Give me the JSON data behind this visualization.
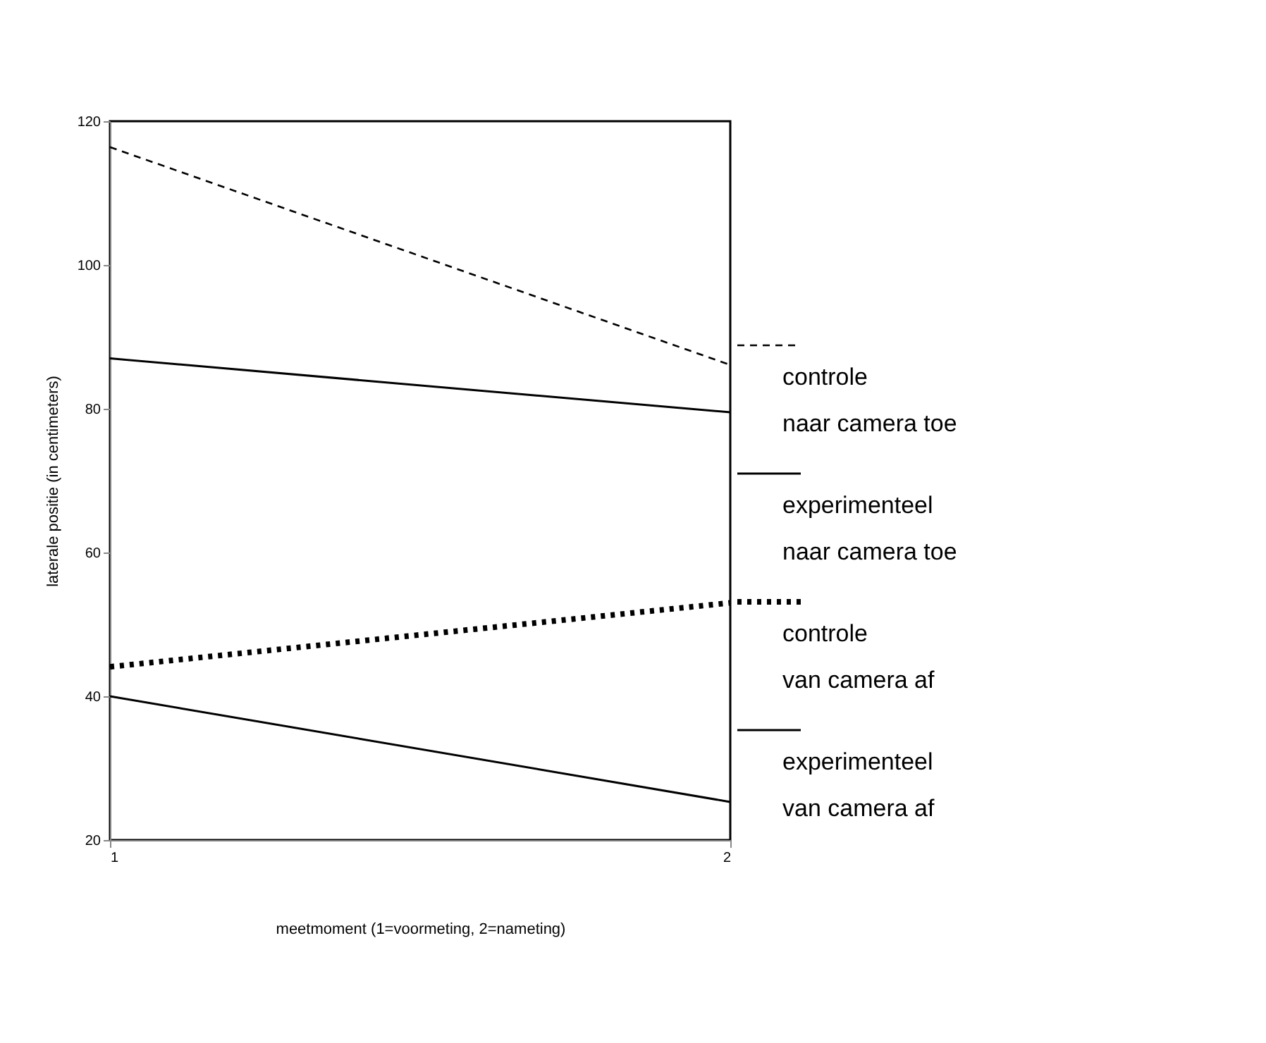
{
  "chart_data": {
    "type": "line",
    "xlabel": "meetmoment (1=voormeting, 2=nameting)",
    "ylabel": "laterale positie (in centimeters)",
    "x": [
      1,
      2
    ],
    "xlim": [
      1,
      2
    ],
    "xticks": [
      1,
      2
    ],
    "ylim": [
      20,
      120
    ],
    "yticks": [
      20,
      40,
      60,
      80,
      100,
      120
    ],
    "grid": false,
    "legend": "right",
    "marker": "none",
    "series": [
      {
        "name": "controle naar camera toe",
        "color": "#000000",
        "line_style": "dashed",
        "values": [
          116.4,
          86.1
        ]
      },
      {
        "name": "experimenteel naar camera toe",
        "color": "#000000",
        "line_style": "solid",
        "values": [
          87.0,
          79.5
        ]
      },
      {
        "name": "controle van camera af",
        "color": "#000000",
        "line_style": "dotted",
        "values": [
          44.1,
          53.0
        ]
      },
      {
        "name": "experimenteel van camera af",
        "color": "#000000",
        "line_style": "solid",
        "values": [
          40.0,
          25.3
        ]
      }
    ]
  }
}
